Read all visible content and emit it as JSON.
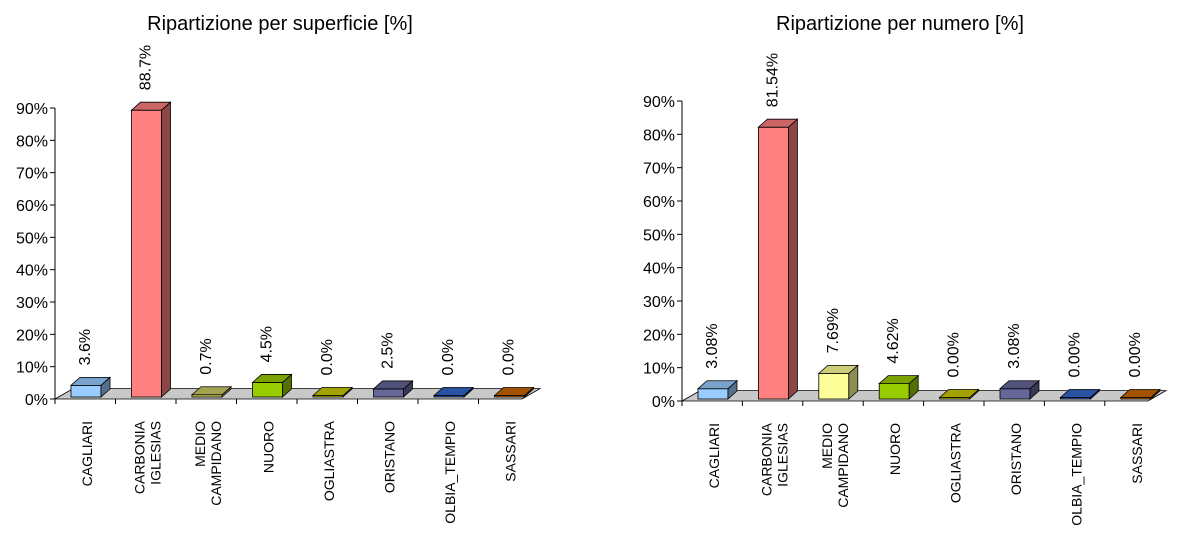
{
  "chart_data": [
    {
      "type": "bar",
      "title": "Ripartizione per superficie [%]",
      "categories": [
        "CAGLIARI",
        "CARBONIA\nIGLESIAS",
        "MEDIO\nCAMPIDANO",
        "NUORO",
        "OGLIASTRA",
        "ORISTANO",
        "OLBIA_TEMPIO",
        "SASSARI"
      ],
      "values": [
        3.6,
        88.7,
        0.7,
        4.5,
        0.0,
        2.5,
        0.0,
        0.0
      ],
      "value_labels": [
        "3.6%",
        "88.7%",
        "0.7%",
        "4.5%",
        "0.0%",
        "2.5%",
        "0.0%",
        "0.0%"
      ],
      "ylim": [
        0,
        90
      ],
      "yticks": [
        0,
        10,
        20,
        30,
        40,
        50,
        60,
        70,
        80,
        90
      ],
      "ytick_labels": [
        "0%",
        "10%",
        "20%",
        "30%",
        "40%",
        "50%",
        "60%",
        "70%",
        "80%",
        "90%"
      ],
      "xlabel": "",
      "ylabel": "",
      "grid": false,
      "legend": "none",
      "colors": [
        "#99ccff",
        "#ff8080",
        "#cccc66",
        "#99cc00",
        "#cccc00",
        "#666699",
        "#3366cc",
        "#cc6600"
      ]
    },
    {
      "type": "bar",
      "title": "Ripartizione per numero [%]",
      "categories": [
        "CAGLIARI",
        "CARBONIA\nIGLESIAS",
        "MEDIO\nCAMPIDANO",
        "NUORO",
        "OGLIASTRA",
        "ORISTANO",
        "OLBIA_TEMPIO",
        "SASSARI"
      ],
      "values": [
        3.08,
        81.54,
        7.69,
        4.62,
        0.0,
        3.08,
        0.0,
        0.0
      ],
      "value_labels": [
        "3.08%",
        "81.54%",
        "7.69%",
        "4.62%",
        "0.00%",
        "3.08%",
        "0.00%",
        "0.00%"
      ],
      "ylim": [
        0,
        90
      ],
      "yticks": [
        0,
        10,
        20,
        30,
        40,
        50,
        60,
        70,
        80,
        90
      ],
      "ytick_labels": [
        "0%",
        "10%",
        "20%",
        "30%",
        "40%",
        "50%",
        "60%",
        "70%",
        "80%",
        "90%"
      ],
      "xlabel": "",
      "ylabel": "",
      "grid": false,
      "legend": "none",
      "colors": [
        "#99ccff",
        "#ff8080",
        "#ffff99",
        "#99cc00",
        "#cccc00",
        "#666699",
        "#3366cc",
        "#cc6600"
      ]
    }
  ]
}
